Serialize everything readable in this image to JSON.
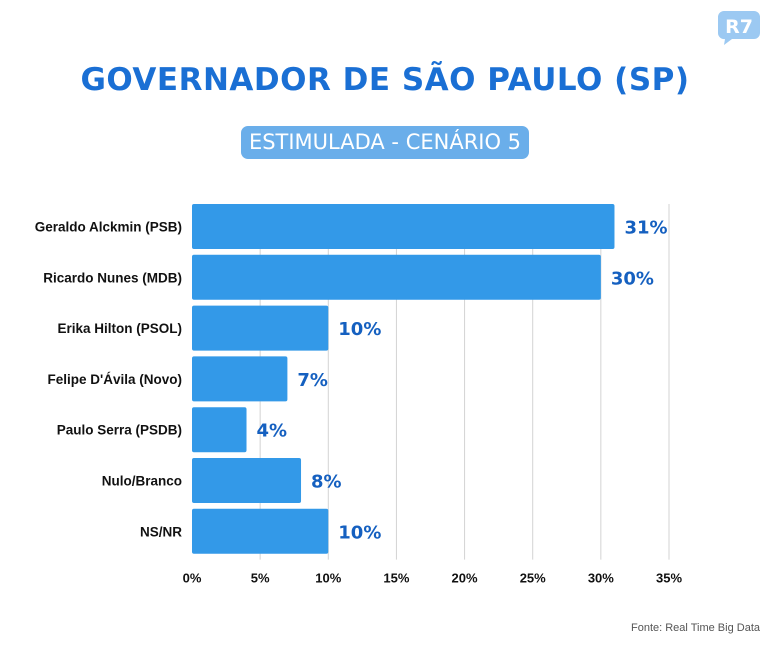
{
  "header": {
    "logo_text": "R7",
    "title": "GOVERNADOR DE SÃO PAULO (SP)",
    "subtitle": "ESTIMULADA - CENÁRIO 5"
  },
  "footer": {
    "source": "Fonte: Real Time Big Data"
  },
  "colors": {
    "bar": "#3399e8",
    "title": "#1a6fd4",
    "value_label": "#1560c0",
    "grid": "#d3d3d3"
  },
  "chart_data": {
    "type": "bar",
    "orientation": "horizontal",
    "categories": [
      "Geraldo Alckmin (PSB)",
      "Ricardo Nunes (MDB)",
      "Erika Hilton (PSOL)",
      "Felipe D'Ávila (Novo)",
      "Paulo Serra (PSDB)",
      "Nulo/Branco",
      "NS/NR"
    ],
    "values": [
      31,
      30,
      10,
      7,
      4,
      8,
      10
    ],
    "value_labels": [
      "31%",
      "30%",
      "10%",
      "7%",
      "4%",
      "8%",
      "10%"
    ],
    "xlim": [
      0,
      35
    ],
    "xticks": [
      0,
      5,
      10,
      15,
      20,
      25,
      30,
      35
    ],
    "xtick_labels": [
      "0%",
      "5%",
      "10%",
      "15%",
      "20%",
      "25%",
      "30%",
      "35%"
    ],
    "grid": true,
    "title": "GOVERNADOR DE SÃO PAULO (SP)",
    "subtitle": "ESTIMULADA - CENÁRIO 5"
  }
}
